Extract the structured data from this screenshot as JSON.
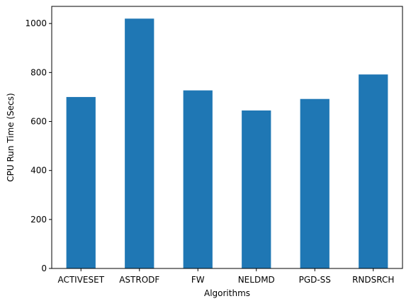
{
  "chart_data": {
    "type": "bar",
    "title": "",
    "xlabel": "Algorithms",
    "ylabel": "CPU Run Time (Secs)",
    "categories": [
      "ACTIVESET",
      "ASTRODF",
      "FW",
      "NELDMD",
      "PGD-SS",
      "RNDSRCH"
    ],
    "values": [
      700,
      1020,
      727,
      645,
      692,
      792
    ],
    "ylim": [
      0,
      1070
    ],
    "yticks": [
      0,
      200,
      400,
      600,
      800,
      1000
    ],
    "grid": false,
    "bar_color": "#1f77b4"
  }
}
